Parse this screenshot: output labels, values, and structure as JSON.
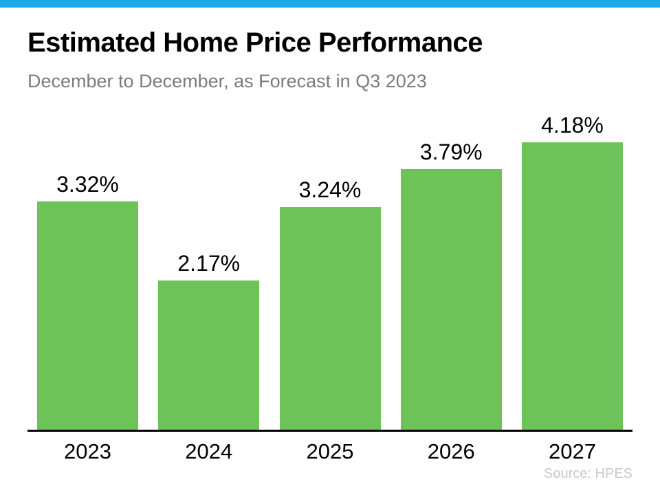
{
  "page": {
    "background_color": "#ffffff",
    "accent_bar_color": "#1aa9e6"
  },
  "header": {
    "title": "Estimated Home Price Performance",
    "subtitle": "December to December, as Forecast in Q3 2023"
  },
  "chart_data": {
    "type": "bar",
    "title": "Estimated Home Price Performance",
    "subtitle": "December to December, as Forecast in Q3 2023",
    "categories": [
      "2023",
      "2024",
      "2025",
      "2026",
      "2027"
    ],
    "values": [
      3.32,
      2.17,
      3.24,
      3.79,
      4.18
    ],
    "value_labels": [
      "3.32%",
      "2.17%",
      "3.24%",
      "3.79%",
      "4.18%"
    ],
    "xlabel": "",
    "ylabel": "",
    "ylim": [
      0,
      4.7
    ],
    "grid": false,
    "legend": false,
    "bar_color": "#6dc358",
    "axis_color": "#000000",
    "label_color": "#000000"
  },
  "footer": {
    "source": "Source: HPES"
  }
}
